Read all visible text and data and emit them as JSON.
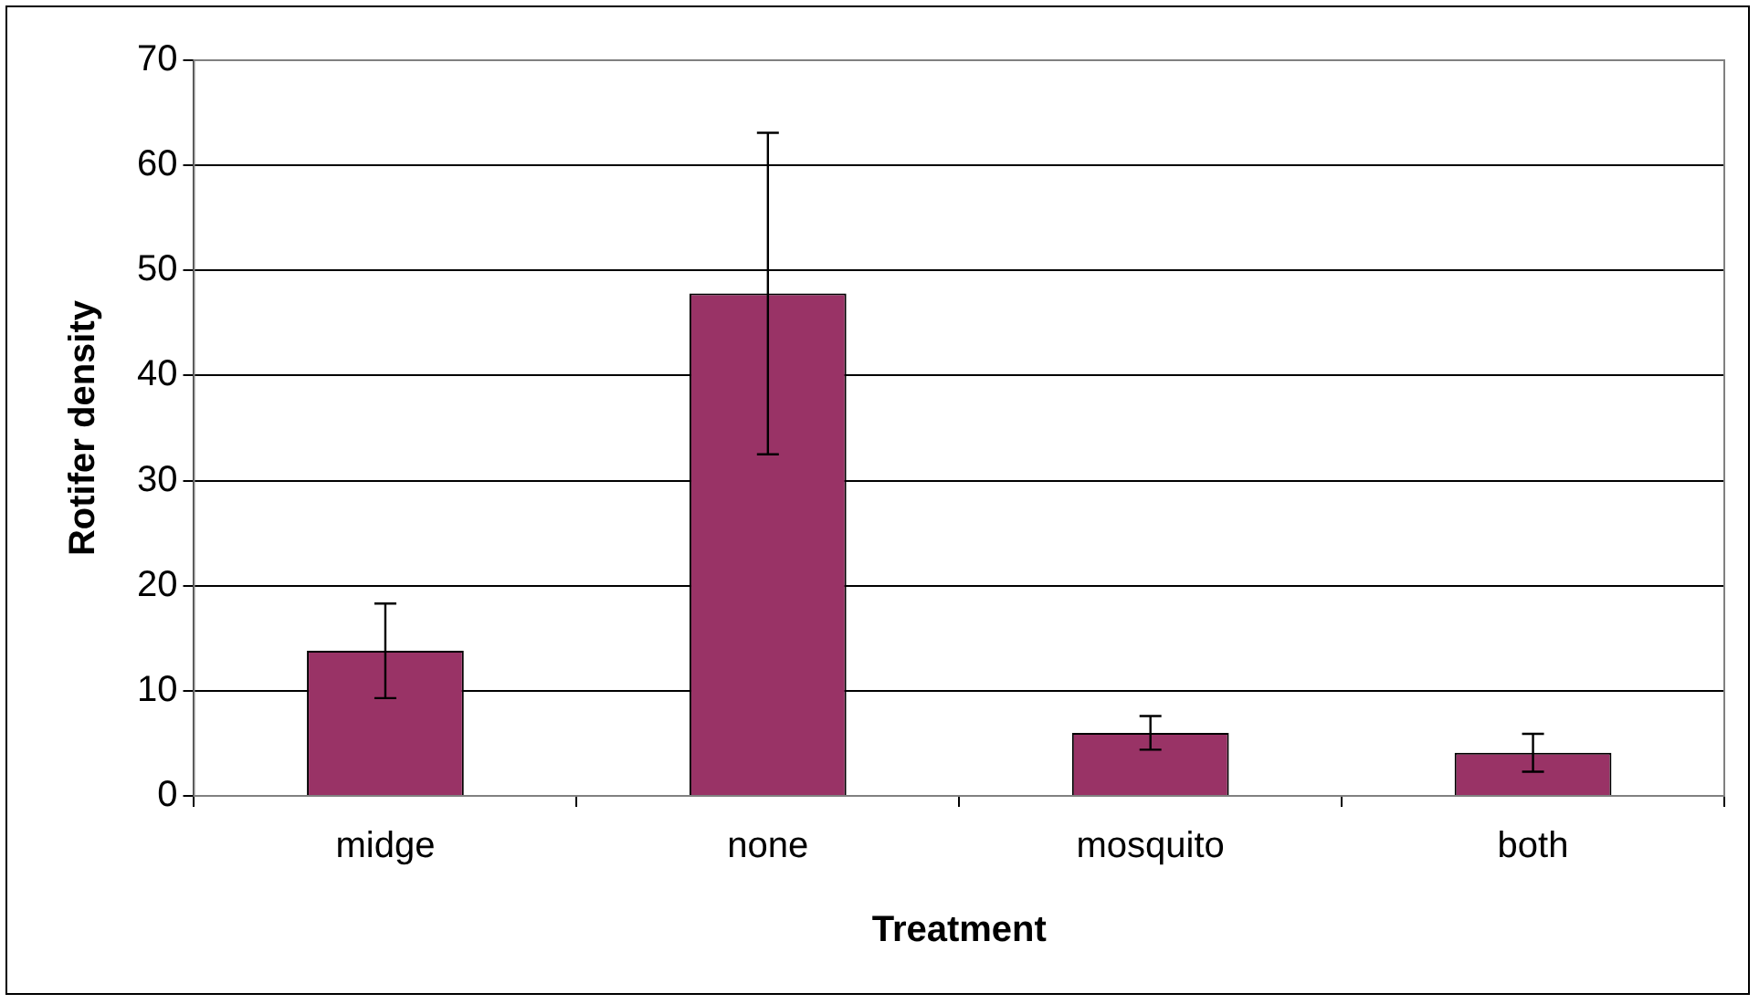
{
  "chart_data": {
    "type": "bar",
    "xlabel": "Treatment",
    "ylabel": "Rotifer density",
    "categories": [
      "midge",
      "none",
      "mosquito",
      "both"
    ],
    "values": [
      13.8,
      47.8,
      6.0,
      4.1
    ],
    "errors": [
      4.5,
      15.3,
      1.6,
      1.8
    ],
    "color": "#993366",
    "ylim": [
      0,
      70
    ],
    "yticks": [
      0,
      10,
      20,
      30,
      40,
      50,
      60,
      70
    ],
    "grid": "y",
    "legend": false
  }
}
